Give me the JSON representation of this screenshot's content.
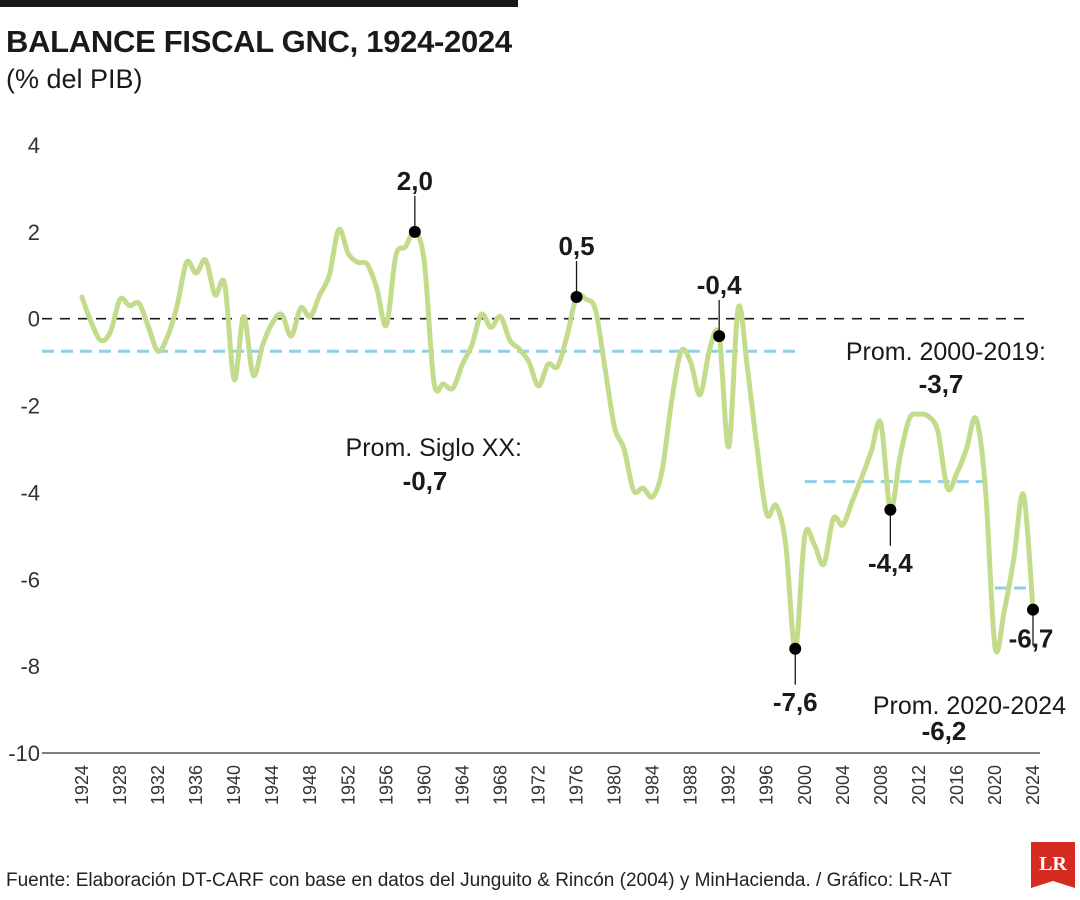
{
  "header": {
    "title": "BALANCE FISCAL GNC, 1924-2024",
    "subtitle": "(% del PIB)"
  },
  "footer": {
    "source": "Fuente: Elaboración DT-CARF con base en datos del Junguito & Rincón (2004) y MinHacienda. / Gráfico: LR-AT",
    "logo_text": "LR"
  },
  "colors": {
    "line": "#c3dc8c",
    "average": "#8dcfe6",
    "zero": "#1a1a1a",
    "logo": "#d62b20"
  },
  "chart_data": {
    "type": "line",
    "title": "BALANCE FISCAL GNC, 1924-2024",
    "ylabel": "(% del PIB)",
    "ylim": [
      -10,
      4
    ],
    "yticks": [
      4,
      2,
      0,
      -2,
      -4,
      -6,
      -8,
      -10
    ],
    "ytick_labels": [
      "4",
      "2",
      "0",
      "-2",
      "-4",
      "-6",
      "-8",
      "-10"
    ],
    "xlim": [
      1924,
      2024
    ],
    "xticks": [
      1924,
      1928,
      1932,
      1936,
      1940,
      1944,
      1948,
      1952,
      1956,
      1960,
      1964,
      1968,
      1972,
      1976,
      1980,
      1984,
      1988,
      1992,
      1996,
      2000,
      2004,
      2008,
      2012,
      2016,
      2020,
      2024
    ],
    "xtick_labels": [
      "1924",
      "1928",
      "1932",
      "1936",
      "1940",
      "1944",
      "1948",
      "1952",
      "1956",
      "1960",
      "1964",
      "1968",
      "1972",
      "1976",
      "1980",
      "1984",
      "1988",
      "1992",
      "1996",
      "2000",
      "2004",
      "2008",
      "2012",
      "2016",
      "2020",
      "2024"
    ],
    "series": [
      {
        "name": "Balance fiscal GNC",
        "x": [
          1924,
          1925,
          1926,
          1927,
          1928,
          1929,
          1930,
          1931,
          1932,
          1933,
          1934,
          1935,
          1936,
          1937,
          1938,
          1939,
          1940,
          1941,
          1942,
          1943,
          1944,
          1945,
          1946,
          1947,
          1948,
          1949,
          1950,
          1951,
          1952,
          1953,
          1954,
          1955,
          1956,
          1957,
          1958,
          1959,
          1960,
          1961,
          1962,
          1963,
          1964,
          1965,
          1966,
          1967,
          1968,
          1969,
          1970,
          1971,
          1972,
          1973,
          1974,
          1975,
          1976,
          1977,
          1978,
          1979,
          1980,
          1981,
          1982,
          1983,
          1984,
          1985,
          1986,
          1987,
          1988,
          1989,
          1990,
          1991,
          1992,
          1993,
          1994,
          1995,
          1996,
          1997,
          1998,
          1999,
          2000,
          2001,
          2002,
          2003,
          2004,
          2005,
          2006,
          2007,
          2008,
          2009,
          2010,
          2011,
          2012,
          2013,
          2014,
          2015,
          2016,
          2017,
          2018,
          2019,
          2020,
          2021,
          2022,
          2023,
          2024
        ],
        "values": [
          0.5,
          -0.1,
          -0.5,
          -0.3,
          0.45,
          0.3,
          0.35,
          -0.2,
          -0.75,
          -0.4,
          0.3,
          1.3,
          1.05,
          1.35,
          0.55,
          0.8,
          -1.4,
          0.05,
          -1.3,
          -0.6,
          -0.1,
          0.1,
          -0.4,
          0.25,
          0.05,
          0.55,
          1.0,
          2.05,
          1.5,
          1.3,
          1.25,
          0.7,
          -0.15,
          1.45,
          1.65,
          2.0,
          1.3,
          -1.45,
          -1.5,
          -1.6,
          -1.05,
          -0.6,
          0.1,
          -0.2,
          0.05,
          -0.5,
          -0.7,
          -1.0,
          -1.55,
          -1.05,
          -1.1,
          -0.4,
          0.5,
          0.45,
          0.2,
          -1.15,
          -2.5,
          -3.0,
          -3.95,
          -3.9,
          -4.1,
          -3.5,
          -1.9,
          -0.75,
          -1.0,
          -1.75,
          -0.7,
          -0.4,
          -2.95,
          0.25,
          -1.2,
          -3.0,
          -4.5,
          -4.3,
          -5.2,
          -7.6,
          -5.0,
          -5.2,
          -5.65,
          -4.6,
          -4.75,
          -4.2,
          -3.65,
          -3.05,
          -2.4,
          -4.4,
          -3.2,
          -2.3,
          -2.2,
          -2.25,
          -2.6,
          -3.9,
          -3.55,
          -3.0,
          -2.3,
          -3.9,
          -7.55,
          -6.7,
          -5.5,
          -4.05,
          -6.7
        ]
      }
    ],
    "reference_line": {
      "name": "cero",
      "value": 0
    },
    "averages": [
      {
        "label": "Prom. Siglo XX:",
        "value_label": "-0,7",
        "value": -0.75,
        "x_start": 1924,
        "x_end": 1999
      },
      {
        "label": "Prom. 2000-2019:",
        "value_label": "-3,7",
        "value": -3.75,
        "x_start": 2000,
        "x_end": 2019
      },
      {
        "label": "Prom. 2020-2024",
        "value_label": "-6,2",
        "value": -6.2,
        "x_start": 2020,
        "x_end": 2024
      }
    ],
    "annotations": [
      {
        "year": 1959,
        "value": 2.0,
        "text": "2,0"
      },
      {
        "year": 1976,
        "value": 0.5,
        "text": "0,5"
      },
      {
        "year": 1991,
        "value": -0.4,
        "text": "-0,4"
      },
      {
        "year": 1999,
        "value": -7.6,
        "text": "-7,6"
      },
      {
        "year": 2009,
        "value": -4.4,
        "text": "-4,4"
      },
      {
        "year": 2024,
        "value": -6.7,
        "text": "-6,7"
      }
    ]
  }
}
